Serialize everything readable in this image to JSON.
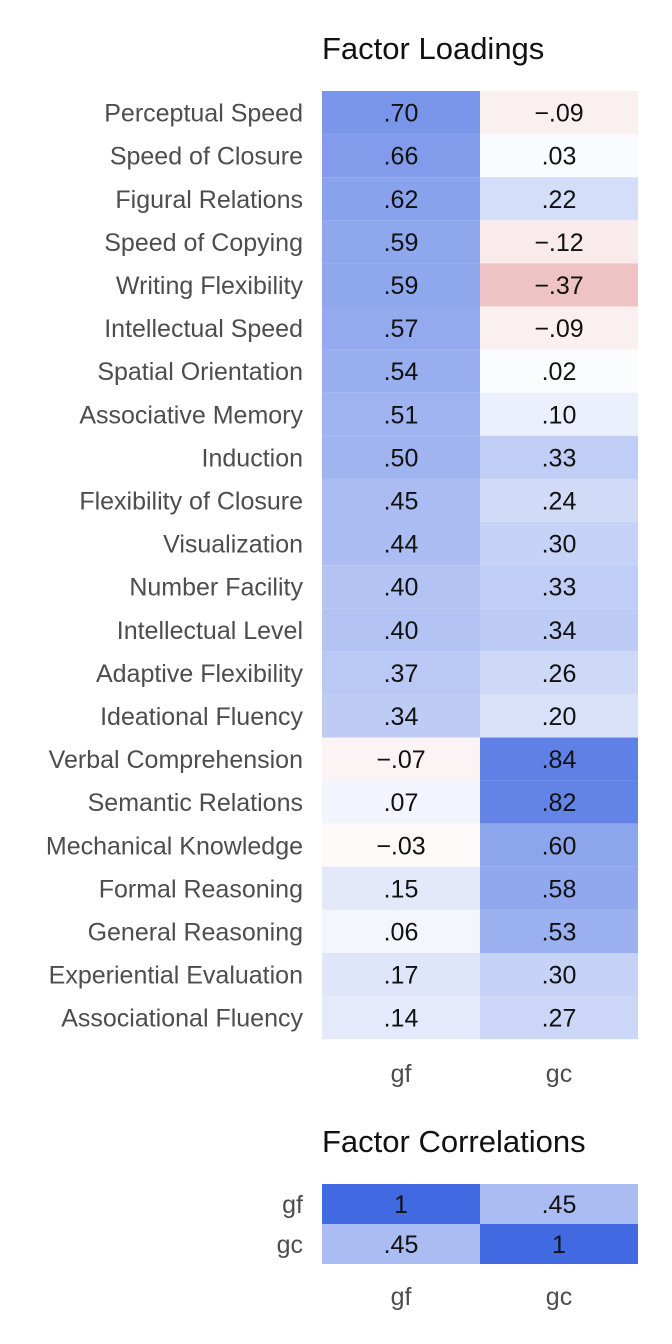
{
  "chart_data": [
    {
      "type": "heatmap",
      "title": "Factor Loadings",
      "columns": [
        "gf",
        "gc"
      ],
      "rows": [
        "Perceptual Speed",
        "Speed of Closure",
        "Figural Relations",
        "Speed of Copying",
        "Writing Flexibility",
        "Intellectual Speed",
        "Spatial Orientation",
        "Associative Memory",
        "Induction",
        "Flexibility of Closure",
        "Visualization",
        "Number Facility",
        "Intellectual Level",
        "Adaptive Flexibility",
        "Ideational Fluency",
        "Verbal Comprehension",
        "Semantic Relations",
        "Mechanical Knowledge",
        "Formal Reasoning",
        "General Reasoning",
        "Experiential Evaluation",
        "Associational Fluency"
      ],
      "values": [
        [
          0.7,
          -0.09
        ],
        [
          0.66,
          0.03
        ],
        [
          0.62,
          0.22
        ],
        [
          0.59,
          -0.12
        ],
        [
          0.59,
          -0.37
        ],
        [
          0.57,
          -0.09
        ],
        [
          0.54,
          0.02
        ],
        [
          0.51,
          0.1
        ],
        [
          0.5,
          0.33
        ],
        [
          0.45,
          0.24
        ],
        [
          0.44,
          0.3
        ],
        [
          0.4,
          0.33
        ],
        [
          0.4,
          0.34
        ],
        [
          0.37,
          0.26
        ],
        [
          0.34,
          0.2
        ],
        [
          -0.07,
          0.84
        ],
        [
          0.07,
          0.82
        ],
        [
          -0.03,
          0.6
        ],
        [
          0.15,
          0.58
        ],
        [
          0.06,
          0.53
        ],
        [
          0.17,
          0.3
        ],
        [
          0.14,
          0.27
        ]
      ],
      "labels": [
        [
          ".70",
          "−.09"
        ],
        [
          ".66",
          ".03"
        ],
        [
          ".62",
          ".22"
        ],
        [
          ".59",
          "−.12"
        ],
        [
          ".59",
          "−.37"
        ],
        [
          ".57",
          "−.09"
        ],
        [
          ".54",
          ".02"
        ],
        [
          ".51",
          ".10"
        ],
        [
          ".50",
          ".33"
        ],
        [
          ".45",
          ".24"
        ],
        [
          ".44",
          ".30"
        ],
        [
          ".40",
          ".33"
        ],
        [
          ".40",
          ".34"
        ],
        [
          ".37",
          ".26"
        ],
        [
          ".34",
          ".20"
        ],
        [
          "−.07",
          ".84"
        ],
        [
          ".07",
          ".82"
        ],
        [
          "−.03",
          ".60"
        ],
        [
          ".15",
          ".58"
        ],
        [
          ".06",
          ".53"
        ],
        [
          ".17",
          ".30"
        ],
        [
          ".14",
          ".27"
        ]
      ],
      "color_scale": {
        "positive": "#4169e1",
        "negative": "#cd5c5c",
        "zero": "#ffffff",
        "range": [
          -1,
          1
        ]
      }
    },
    {
      "type": "heatmap",
      "title": "Factor Correlations",
      "columns": [
        "gf",
        "gc"
      ],
      "rows": [
        "gf",
        "gc"
      ],
      "values": [
        [
          1,
          0.45
        ],
        [
          0.45,
          1
        ]
      ],
      "labels": [
        [
          "1",
          ".45"
        ],
        [
          ".45",
          "1"
        ]
      ],
      "color_scale": {
        "positive": "#4169e1",
        "negative": "#cd5c5c",
        "zero": "#ffffff",
        "range": [
          -1,
          1
        ]
      }
    }
  ]
}
